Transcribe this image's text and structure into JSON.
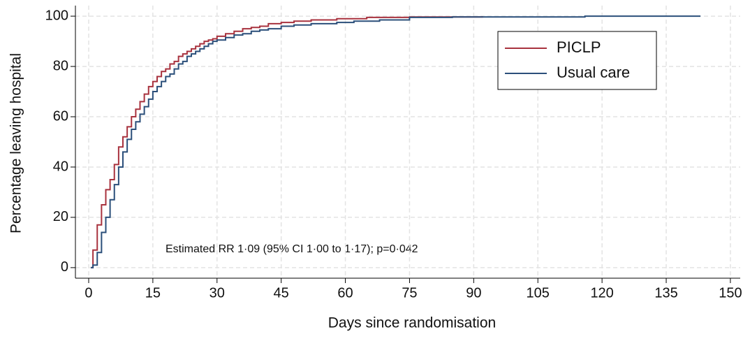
{
  "chart_data": {
    "type": "step",
    "x_label": "Days since randomisation",
    "y_label": "Percentage leaving hospital",
    "annotation": "Estimated RR 1·09 (95% CI 1·00 to 1·17); p=0·042",
    "xlim": [
      -3.1,
      152.3
    ],
    "ylim": [
      -4.2,
      104.2
    ],
    "xticks": [
      0,
      15,
      30,
      45,
      60,
      75,
      90,
      105,
      120,
      135,
      150
    ],
    "yticks": [
      0,
      20,
      40,
      60,
      80,
      100
    ],
    "grid": true,
    "legend": "upper right",
    "series": [
      {
        "name": "PICLP",
        "color": "#a8323e",
        "x": [
          0.5,
          1,
          2,
          3,
          4,
          5,
          6,
          7,
          8,
          9,
          10,
          11,
          12,
          13,
          14,
          15,
          16,
          17,
          18,
          19,
          20,
          21,
          22,
          23,
          24,
          25,
          26,
          27,
          28,
          29,
          30,
          32,
          34,
          36,
          38,
          40,
          42,
          45,
          48,
          52,
          58,
          65,
          75,
          92
        ],
        "values": [
          0,
          7,
          17,
          25,
          31,
          35,
          41,
          48,
          52,
          56,
          60,
          63,
          66,
          69,
          72,
          74,
          76,
          78,
          79,
          81,
          82,
          84,
          85,
          86,
          87,
          88,
          89,
          90,
          90.5,
          91,
          92,
          93,
          94,
          95,
          95.5,
          96,
          97,
          97.5,
          98,
          98.5,
          99,
          99.5,
          99.7,
          100
        ]
      },
      {
        "name": "Usual care",
        "color": "#2b4f7a",
        "x": [
          0.5,
          1,
          2,
          3,
          4,
          5,
          6,
          7,
          8,
          9,
          10,
          11,
          12,
          13,
          14,
          15,
          16,
          17,
          18,
          19,
          20,
          21,
          22,
          23,
          24,
          25,
          26,
          27,
          28,
          29,
          30,
          32,
          34,
          36,
          38,
          40,
          42,
          45,
          48,
          52,
          58,
          62,
          68,
          75,
          85,
          116,
          143
        ],
        "values": [
          0,
          1,
          6,
          14,
          20,
          27,
          33,
          40,
          46,
          51,
          55,
          58,
          61,
          64,
          67,
          70,
          72,
          74,
          76,
          77,
          79,
          81,
          82,
          84,
          85,
          86,
          87,
          88,
          89,
          90,
          90.5,
          91.5,
          92.5,
          93,
          94,
          94.5,
          95,
          96,
          96.5,
          97,
          97.5,
          98,
          98.5,
          99.5,
          99.7,
          100,
          100
        ]
      }
    ]
  }
}
